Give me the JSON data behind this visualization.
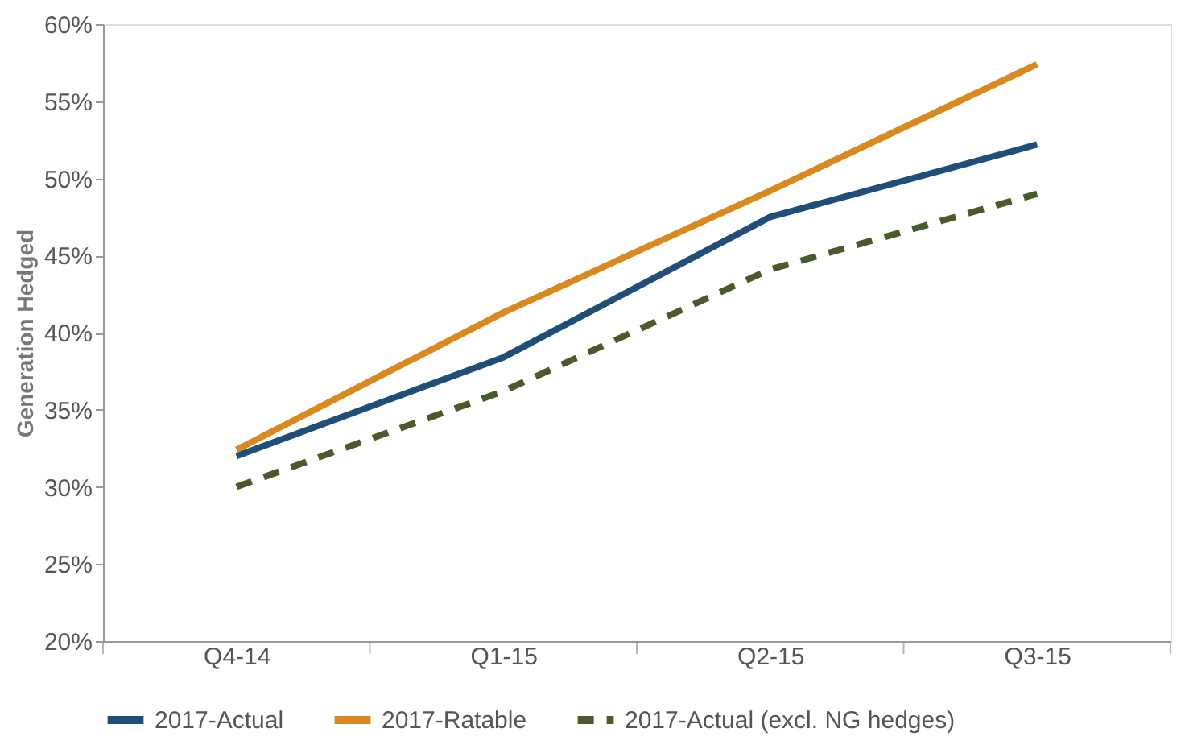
{
  "chart_data": {
    "type": "line",
    "ylabel": "Generation Hedged",
    "categories": [
      "Q4-14",
      "Q1-15",
      "Q2-15",
      "Q3-15"
    ],
    "series": [
      {
        "name": "2017-Actual",
        "color": "#1f4e79",
        "values": [
          32,
          38.4,
          47.5,
          52.2
        ],
        "line_style": "solid"
      },
      {
        "name": "2017-Ratable",
        "color": "#d9891e",
        "values": [
          32.4,
          41.3,
          49.2,
          57.4
        ],
        "line_style": "solid"
      },
      {
        "name": "2017-Actual (excl. NG hedges)",
        "color": "#4a5a2a",
        "values": [
          30,
          36.2,
          44.1,
          49
        ],
        "line_style": "dashed"
      }
    ],
    "ylim": [
      20,
      60
    ],
    "yticks": [
      {
        "value": 20,
        "label": "20%"
      },
      {
        "value": 25,
        "label": "25%"
      },
      {
        "value": 30,
        "label": "30%"
      },
      {
        "value": 35,
        "label": "35%"
      },
      {
        "value": 40,
        "label": "40%"
      },
      {
        "value": 45,
        "label": "45%"
      },
      {
        "value": 50,
        "label": "50%"
      },
      {
        "value": 55,
        "label": "55%"
      },
      {
        "value": 60,
        "label": "60%"
      }
    ],
    "grid": false,
    "legend": "bottom",
    "marker": "none"
  }
}
